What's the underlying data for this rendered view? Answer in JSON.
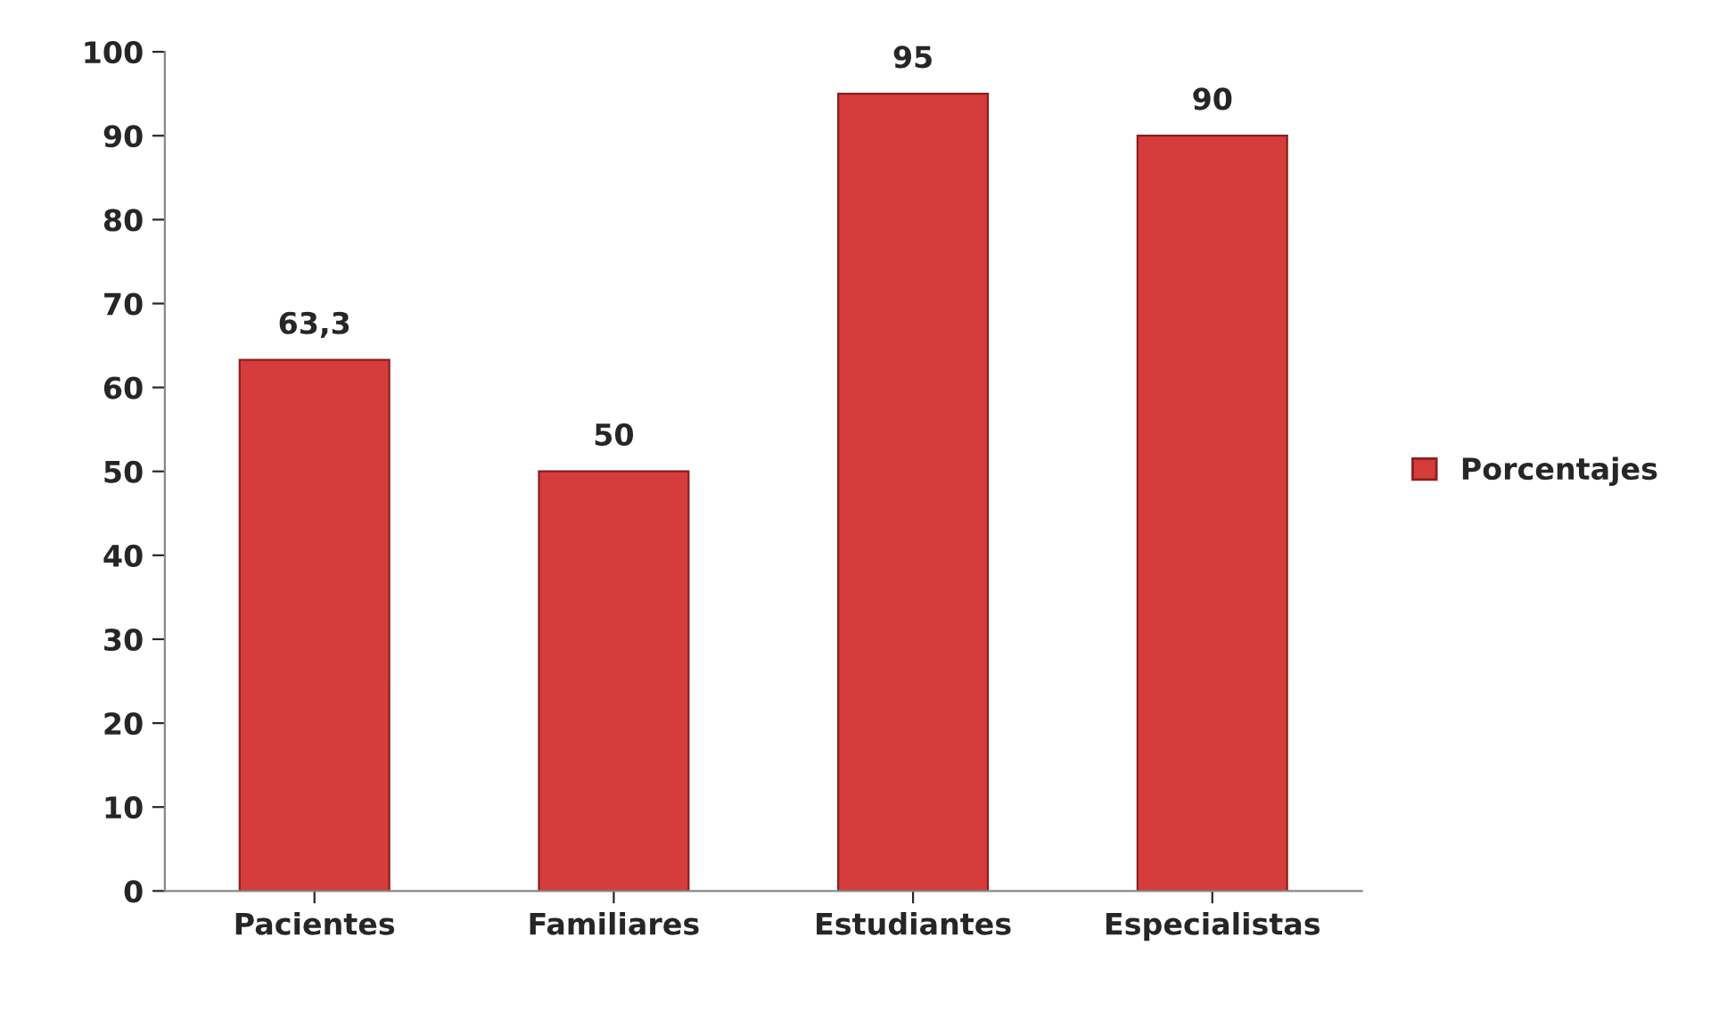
{
  "chart_data": {
    "type": "bar",
    "categories": [
      "Pacientes",
      "Familiares",
      "Estudiantes",
      "Especialistas"
    ],
    "series": [
      {
        "name": "Porcentajes",
        "color": "#d63c3c",
        "values": [
          63.3,
          50,
          95,
          90
        ],
        "value_labels": [
          "63,3",
          "50",
          "95",
          "90"
        ]
      }
    ],
    "ylim": [
      0,
      100
    ],
    "yticks": [
      0,
      10,
      20,
      30,
      40,
      50,
      60,
      70,
      80,
      90,
      100
    ],
    "legend": "right",
    "grid": false
  }
}
